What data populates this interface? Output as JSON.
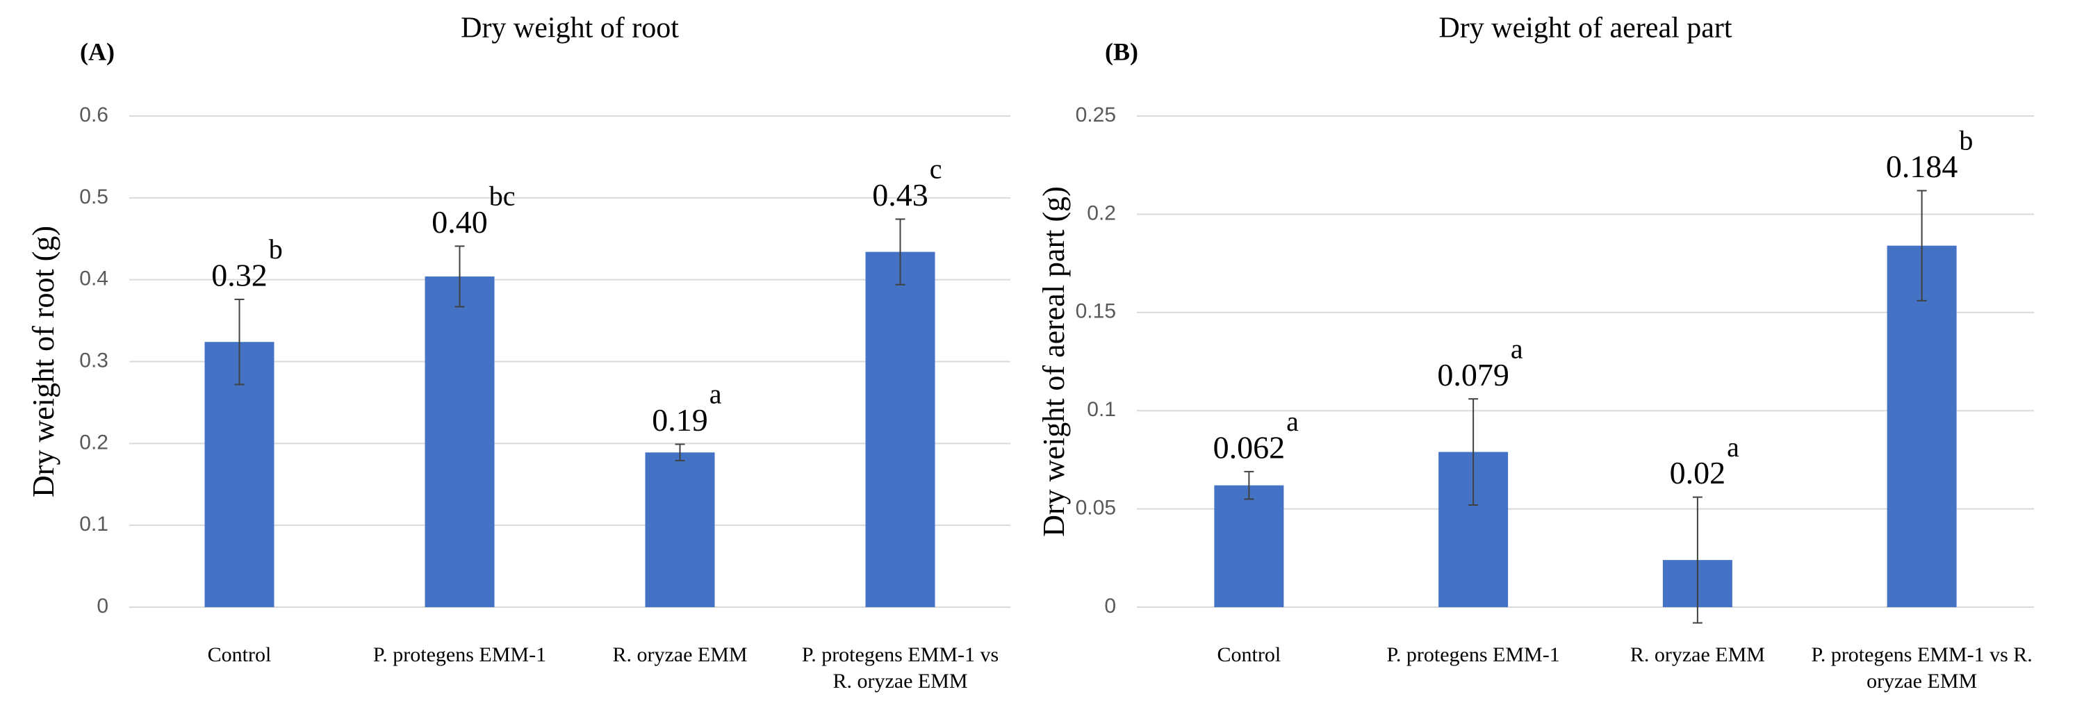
{
  "chart_data": [
    {
      "type": "bar",
      "panel": "(A)",
      "title": "Dry weight of root",
      "y_label": "Dry weight of root (g)",
      "categories": [
        "Control",
        "P. protegens EMM-1",
        "R. oryzae EMM",
        "P. protegens EMM-1 vs R. oryzae EMM"
      ],
      "values": [
        0.324,
        0.404,
        0.189,
        0.434
      ],
      "value_labels": [
        "0.32",
        "0.40",
        "0.19",
        "0.43"
      ],
      "errors": [
        0.052,
        0.037,
        0.01,
        0.04
      ],
      "letters": [
        "b",
        "bc",
        "a",
        "c"
      ],
      "color": "#4472c4",
      "ylim": [
        0,
        0.6
      ],
      "yticks": [
        0,
        0.1,
        0.2,
        0.3,
        0.4,
        0.5,
        0.6
      ],
      "grid": true
    },
    {
      "type": "bar",
      "panel": "(B)",
      "title": "Dry weight of aereal part",
      "y_label": "Dry weight of aereal part (g)",
      "categories": [
        "Control",
        "P. protegens EMM-1",
        "R. oryzae EMM",
        "P. protegens EMM-1 vs R. oryzae EMM"
      ],
      "values": [
        0.062,
        0.079,
        0.024,
        0.184
      ],
      "value_labels": [
        "0.062",
        "0.079",
        "0.02",
        "0.184"
      ],
      "errors": [
        0.007,
        0.027,
        0.032,
        0.028
      ],
      "letters": [
        "a",
        "a",
        "a",
        "b"
      ],
      "color": "#4472c4",
      "ylim": [
        0,
        0.25
      ],
      "yticks": [
        0,
        0.05,
        0.1,
        0.15,
        0.2,
        0.25
      ],
      "grid": true
    }
  ]
}
